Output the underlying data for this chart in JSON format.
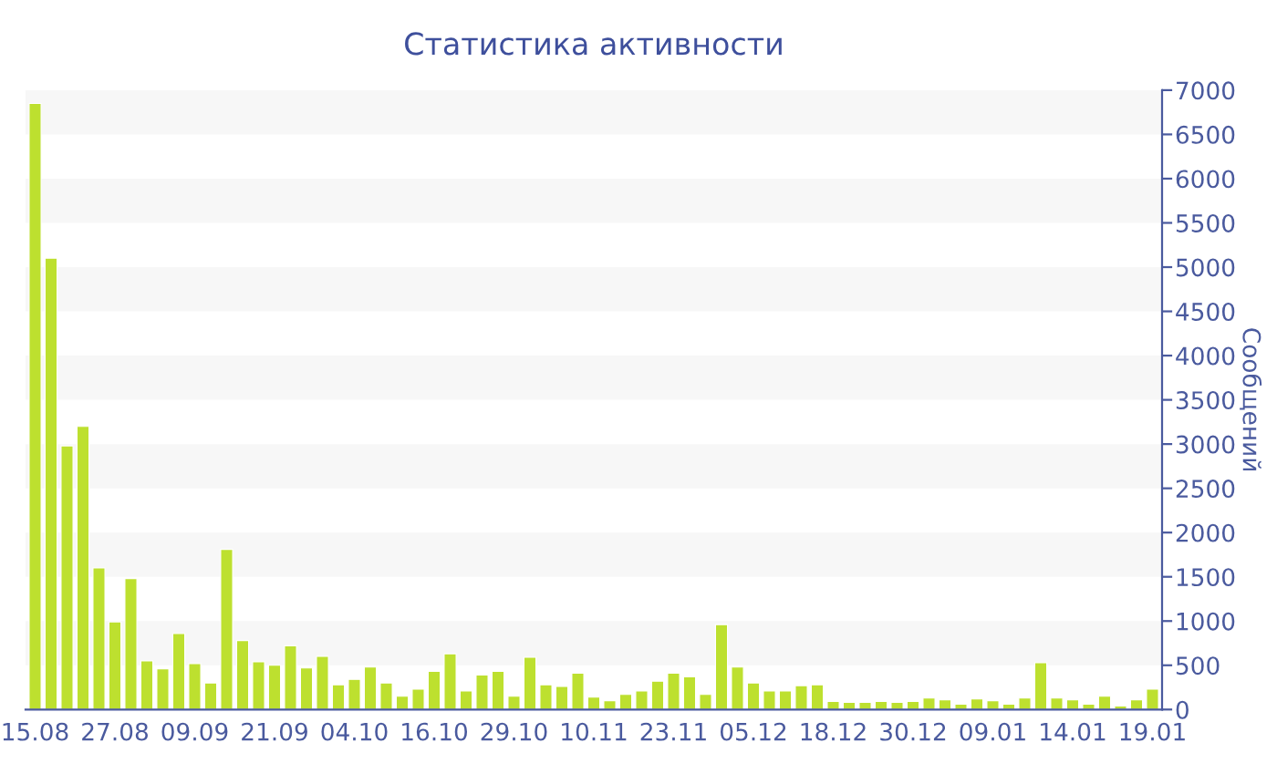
{
  "chart_data": {
    "type": "bar",
    "title": "Статистика активности",
    "ylabel": "Сообщений",
    "categories": [
      "15.08",
      null,
      null,
      null,
      null,
      "27.08",
      null,
      null,
      null,
      null,
      "09.09",
      null,
      null,
      null,
      null,
      "21.09",
      null,
      null,
      null,
      null,
      "04.10",
      null,
      null,
      null,
      null,
      "16.10",
      null,
      null,
      null,
      null,
      "29.10",
      null,
      null,
      null,
      null,
      "10.11",
      null,
      null,
      null,
      null,
      "23.11",
      null,
      null,
      null,
      null,
      "05.12",
      null,
      null,
      null,
      null,
      "18.12",
      null,
      null,
      null,
      null,
      "30.12",
      null,
      null,
      null,
      null,
      "09.01",
      null,
      null,
      null,
      null,
      "14.01",
      null,
      null,
      null,
      null,
      "19.01"
    ],
    "values": [
      6850,
      5100,
      2980,
      3200,
      1600,
      990,
      1480,
      550,
      460,
      860,
      520,
      300,
      1810,
      780,
      540,
      500,
      720,
      470,
      600,
      280,
      340,
      480,
      300,
      150,
      230,
      430,
      630,
      210,
      390,
      430,
      150,
      590,
      280,
      260,
      410,
      140,
      100,
      170,
      210,
      320,
      410,
      370,
      170,
      960,
      480,
      300,
      210,
      210,
      270,
      280,
      90,
      80,
      80,
      90,
      80,
      90,
      130,
      110,
      60,
      120,
      100,
      60,
      130,
      530,
      130,
      110,
      60,
      150,
      40,
      110,
      230
    ],
    "color": "#bde02f",
    "ylim": [
      0,
      7000
    ],
    "yticks": [
      0,
      500,
      1000,
      1500,
      2000,
      2500,
      3000,
      3500,
      4000,
      4500,
      5000,
      5500,
      6000,
      6500,
      7000
    ],
    "bands": [
      {
        "axis": "y",
        "from": 500,
        "to": 1000,
        "color": "#f7f7f7"
      },
      {
        "axis": "y",
        "from": 1500,
        "to": 2000,
        "color": "#f7f7f7"
      },
      {
        "axis": "y",
        "from": 2500,
        "to": 3000,
        "color": "#f7f7f7"
      },
      {
        "axis": "y",
        "from": 3500,
        "to": 4000,
        "color": "#f7f7f7"
      },
      {
        "axis": "y",
        "from": 4500,
        "to": 5000,
        "color": "#f7f7f7"
      },
      {
        "axis": "y",
        "from": 5500,
        "to": 6000,
        "color": "#f7f7f7"
      },
      {
        "axis": "y",
        "from": 6500,
        "to": 7000,
        "color": "#f7f7f7"
      }
    ],
    "grid": false,
    "legend": false
  }
}
